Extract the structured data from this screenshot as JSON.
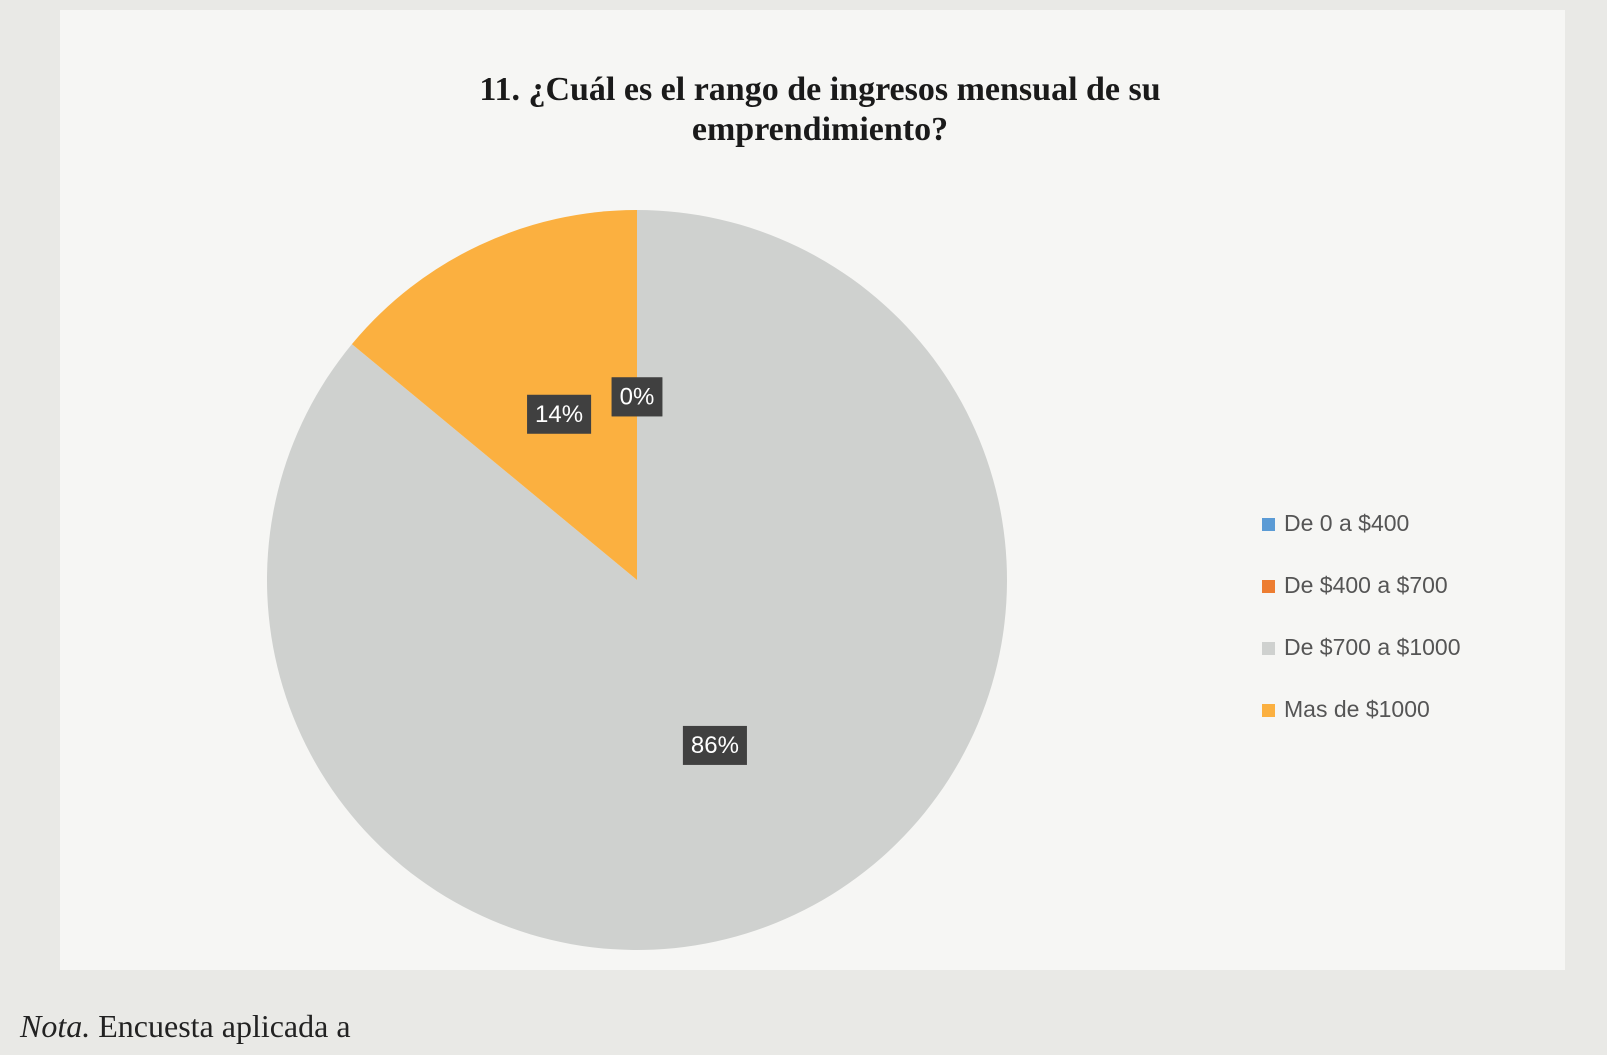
{
  "chart_data": {
    "type": "pie",
    "title": "11. ¿Cuál es el rango de ingresos mensual de su emprendimiento?",
    "categories": [
      "De 0 a $400",
      "De $400 a $700",
      "De $700 a $1000",
      "Mas de $1000"
    ],
    "values": [
      0,
      0,
      86,
      14
    ],
    "value_labels": [
      "0%",
      "0%",
      "86%",
      "14%"
    ],
    "colors": [
      "#5b9bd5",
      "#ed7d31",
      "#cfd1cf",
      "#fbb040"
    ],
    "legend": "right",
    "note_label": "Nota.",
    "note": "Encuesta aplicada a"
  }
}
